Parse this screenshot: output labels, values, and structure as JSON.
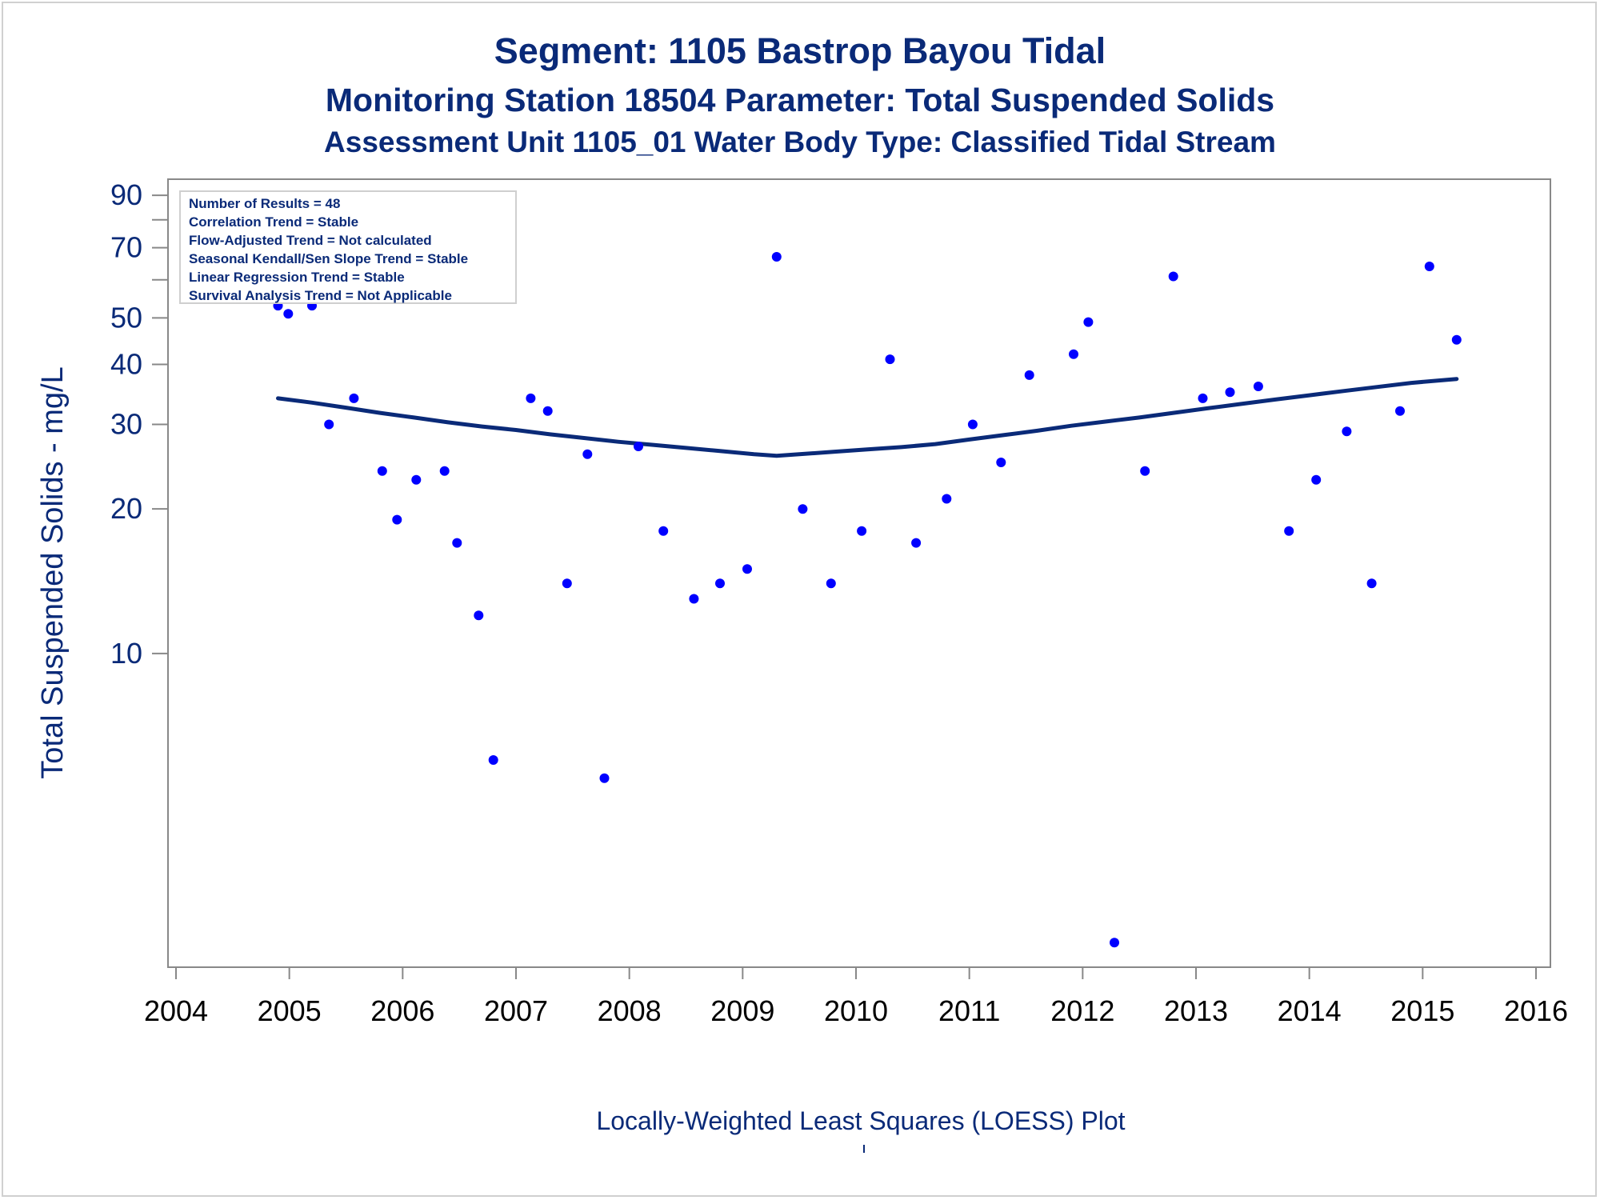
{
  "titles": {
    "line1": "Segment: 1105  Bastrop Bayou Tidal",
    "line2": "Monitoring Station 18504 Parameter: Total Suspended Solids",
    "line3": "Assessment Unit 1105_01   Water Body Type: Classified Tidal Stream"
  },
  "info_box": {
    "lines": [
      "Number of Results = 48",
      "Correlation Trend = Stable",
      "Flow-Adjusted Trend = Not calculated",
      "Seasonal Kendall/Sen Slope Trend = Stable",
      "Linear Regression Trend = Stable",
      "Survival Analysis Trend = Not Applicable"
    ]
  },
  "colors": {
    "points": "#0000ff",
    "trend_line": "#0a2a78",
    "text": "#0a2a78",
    "axis": "#888888"
  },
  "chart_data": {
    "type": "scatter",
    "title": "Segment: 1105  Bastrop Bayou Tidal",
    "ylabel": "Total Suspended Solids - mg/L",
    "xlabel": "",
    "note": "Locally-Weighted Least Squares (LOESS) Plot",
    "y_scale": "log",
    "xlim": [
      2004,
      2016
    ],
    "ylim": [
      2.3,
      95
    ],
    "x_ticks": [
      2004,
      2005,
      2006,
      2007,
      2008,
      2009,
      2010,
      2011,
      2012,
      2013,
      2014,
      2015,
      2016
    ],
    "y_ticks": [
      10,
      20,
      30,
      40,
      50,
      70,
      90
    ],
    "y_minor_ticks": [
      60,
      80
    ],
    "grid": false,
    "points": {
      "x": [
        2004.9,
        2004.99,
        2005.2,
        2005.35,
        2005.57,
        2005.82,
        2005.95,
        2006.12,
        2006.28,
        2006.37,
        2006.48,
        2006.67,
        2006.8,
        2007.13,
        2007.28,
        2007.45,
        2007.63,
        2007.78,
        2008.08,
        2008.3,
        2008.57,
        2008.8,
        2009.04,
        2009.3,
        2009.53,
        2009.78,
        2010.05,
        2010.3,
        2010.53,
        2010.8,
        2011.03,
        2011.28,
        2011.53,
        2011.92,
        2012.05,
        2012.28,
        2012.55,
        2012.8,
        2013.06,
        2013.3,
        2013.55,
        2013.82,
        2014.06,
        2014.33,
        2014.55,
        2014.8,
        2015.06,
        2015.3
      ],
      "y": [
        53,
        51,
        53,
        30,
        34,
        24,
        19,
        23,
        90,
        24,
        17,
        12,
        6,
        34,
        32,
        14,
        26,
        5.5,
        27,
        18,
        13,
        14,
        15,
        67,
        20,
        14,
        18,
        41,
        17,
        21,
        30,
        25,
        38,
        42,
        49,
        2.5,
        24,
        61,
        34,
        35,
        36,
        18,
        23,
        29,
        14,
        32,
        64,
        45
      ]
    },
    "loess": {
      "x": [
        2004.9,
        2005.2,
        2005.5,
        2005.8,
        2006.1,
        2006.4,
        2006.7,
        2007.0,
        2007.3,
        2007.6,
        2007.9,
        2008.2,
        2008.5,
        2008.8,
        2009.1,
        2009.3,
        2009.5,
        2009.8,
        2010.1,
        2010.4,
        2010.7,
        2011.0,
        2011.3,
        2011.6,
        2011.9,
        2012.2,
        2012.5,
        2012.8,
        2013.1,
        2013.4,
        2013.7,
        2014.0,
        2014.3,
        2014.6,
        2014.9,
        2015.3
      ],
      "y": [
        34,
        33.3,
        32.5,
        31.7,
        31.0,
        30.3,
        29.7,
        29.2,
        28.6,
        28.1,
        27.6,
        27.2,
        26.8,
        26.4,
        26.0,
        25.8,
        26.0,
        26.3,
        26.6,
        26.9,
        27.3,
        27.9,
        28.5,
        29.1,
        29.8,
        30.4,
        31.0,
        31.7,
        32.4,
        33.1,
        33.8,
        34.5,
        35.2,
        35.9,
        36.6,
        37.3
      ]
    }
  }
}
